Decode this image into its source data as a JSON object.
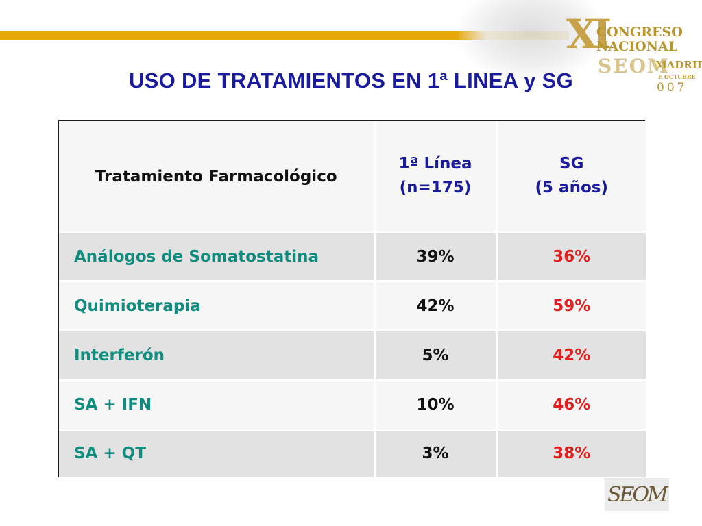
{
  "title": "USO DE TRATAMIENTOS EN 1ª LINEA y SG",
  "logo": {
    "roman": "XI",
    "line1": "CONGRESO",
    "line2": "NACIONAL",
    "line3": "SEOM",
    "line4": "MADRID",
    "line5": "E OCTUBRE",
    "line6": "007"
  },
  "table": {
    "headers": {
      "col1": "Tratamiento Farmacológico",
      "col2_line1": "1ª Línea",
      "col2_line2": "(n=175)",
      "col3_line1": "SG",
      "col3_line2": "(5 años)"
    },
    "rows": [
      {
        "name": "Análogos de Somatostatina",
        "linea1": "39%",
        "sg": "36%"
      },
      {
        "name": "Quimioterapia",
        "linea1": "42%",
        "sg": "59%"
      },
      {
        "name": "Interferón",
        "linea1": "5%",
        "sg": "42%"
      },
      {
        "name": "SA + IFN",
        "linea1": "10%",
        "sg": "46%"
      },
      {
        "name": "SA + QT",
        "linea1": "3%",
        "sg": "38%"
      }
    ]
  },
  "footer_logo": "SEOM",
  "colors": {
    "title": "#1a1a9c",
    "treatment_names": "#0f8c7d",
    "sg_values": "#e02020",
    "accent_bar": "#e8a80c"
  }
}
